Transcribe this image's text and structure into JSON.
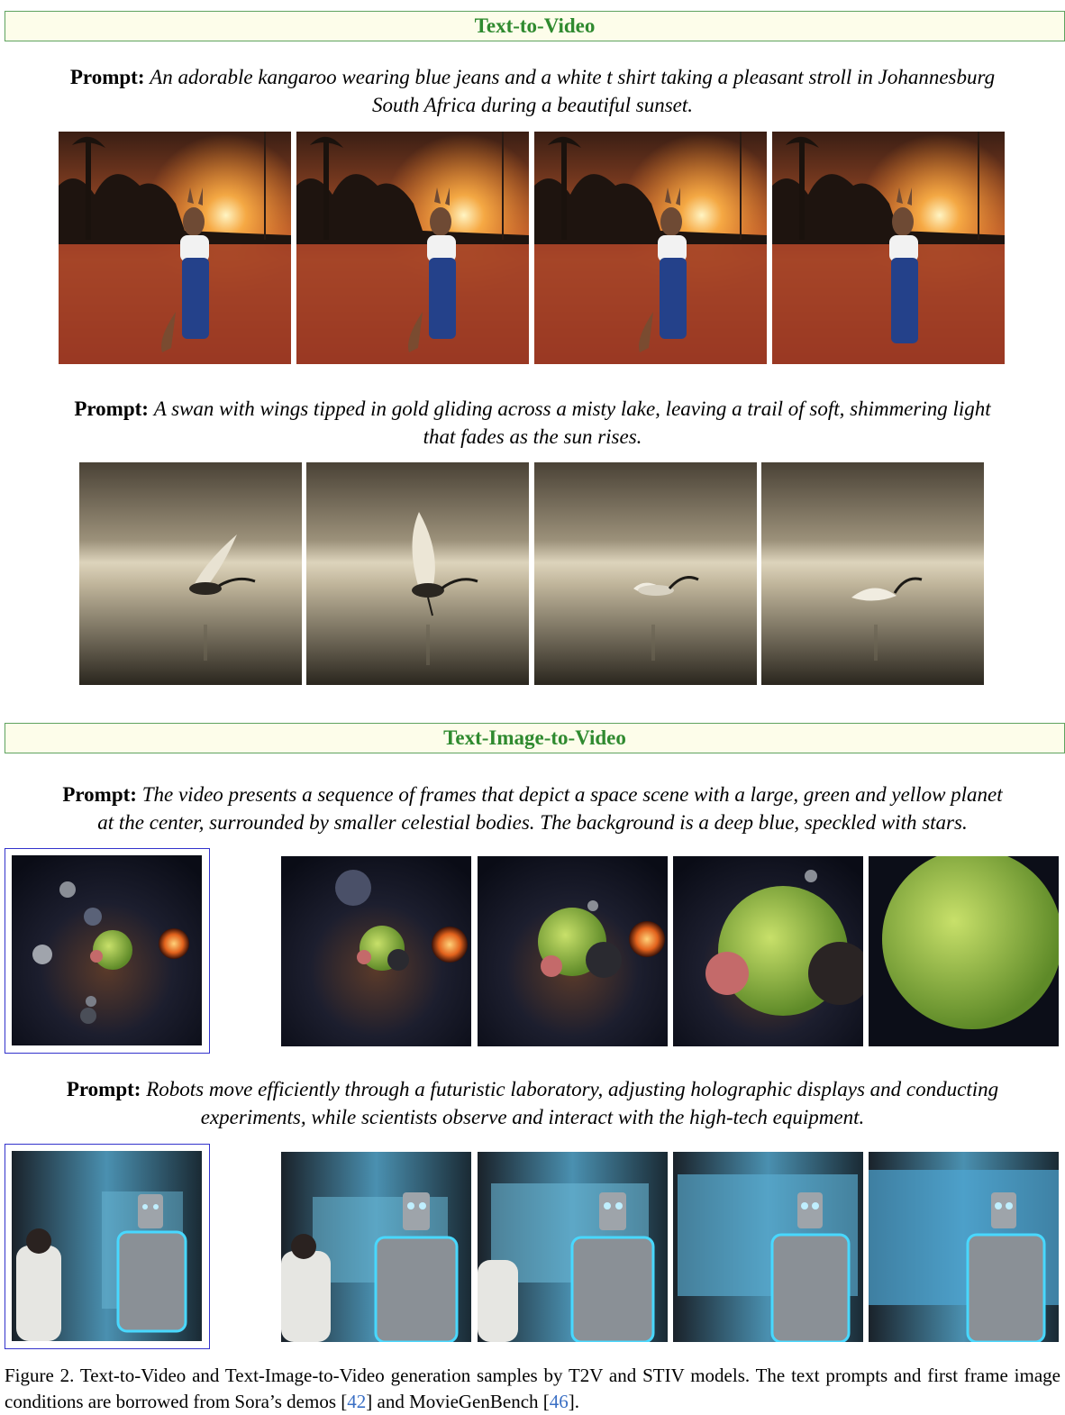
{
  "sections": [
    {
      "title": "Text-to-Video",
      "prompts": [
        {
          "label": "Prompt:",
          "text_line1": "An adorable kangaroo wearing blue jeans and a white t shirt taking a pleasant stroll in Johannesburg",
          "text_line2": "South Africa during a beautiful sunset."
        },
        {
          "label": "Prompt:",
          "text_line1": "A swan with wings tipped in gold gliding across a misty lake, leaving a trail of soft, shimmering light",
          "text_line2": "that fades as the sun rises."
        }
      ]
    },
    {
      "title": "Text-Image-to-Video",
      "prompts": [
        {
          "label": "Prompt:",
          "text_line1": "The video presents a sequence of frames that depict a space scene with a large, green and yellow planet",
          "text_line2": "at the center, surrounded by smaller celestial bodies. The background is a deep blue, speckled with stars."
        },
        {
          "label": "Prompt:",
          "text_line1": "Robots move efficiently through a futuristic laboratory, adjusting holographic displays and conducting",
          "text_line2": "experiments, while scientists observe and interact with the high-tech equipment."
        }
      ]
    }
  ],
  "caption": {
    "part1": "Figure 2. Text-to-Video and Text-Image-to-Video generation samples by T2V and STIV models. The text prompts and first frame image conditions are borrowed from Sora’s demos [",
    "ref1": "42",
    "part2": "] and MovieGenBench [",
    "ref2": "46",
    "part3": "]."
  },
  "colors": {
    "header_border": "#5fa35f",
    "header_bg": "#fdfdea",
    "header_text": "#2f8a2f",
    "condition_border": "#3333cc",
    "citation": "#3a6fc4"
  }
}
